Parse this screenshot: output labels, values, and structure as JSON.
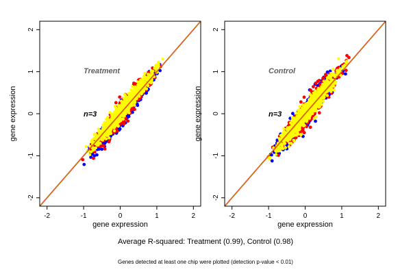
{
  "chart_data": [
    {
      "type": "scatter",
      "panel_label": "Treatment",
      "n_label": "n=3",
      "xlabel": "gene expression",
      "ylabel": "gene expression",
      "xlim": [
        -2.2,
        2.2
      ],
      "ylim": [
        -2.2,
        2.2
      ],
      "xticks": [
        -2,
        -1,
        0,
        1,
        2
      ],
      "yticks": [
        -2,
        -1,
        0,
        1,
        2
      ],
      "reference_line": {
        "slope": 1,
        "intercept": 0,
        "colors": [
          "#c00000",
          "#e8a000"
        ]
      },
      "series": [
        {
          "color": "#0000ff",
          "cloud": {
            "x_range": [
              -1.1,
              1.25
            ],
            "center_offset": -0.06,
            "spread": 0.2
          }
        },
        {
          "color": "#ff0000",
          "cloud": {
            "x_range": [
              -1.1,
              1.2
            ],
            "center_offset": 0.0,
            "spread": 0.22
          }
        },
        {
          "color": "#ffff00",
          "cloud": {
            "x_range": [
              -1.1,
              1.2
            ],
            "center_offset": 0.04,
            "spread": 0.18
          }
        }
      ]
    },
    {
      "type": "scatter",
      "panel_label": "Control",
      "n_label": "n=3",
      "xlabel": "gene expression",
      "ylabel": "gene expression",
      "xlim": [
        -2.2,
        2.2
      ],
      "ylim": [
        -2.2,
        2.2
      ],
      "xticks": [
        -2,
        -1,
        0,
        1,
        2
      ],
      "yticks": [
        -2,
        -1,
        0,
        1,
        2
      ],
      "reference_line": {
        "slope": 1,
        "intercept": 0,
        "colors": [
          "#c00000",
          "#e8a000"
        ]
      },
      "series": [
        {
          "color": "#0000ff",
          "cloud": {
            "x_range": [
              -1.1,
              1.3
            ],
            "center_offset": 0.0,
            "spread": 0.26
          }
        },
        {
          "color": "#ff0000",
          "cloud": {
            "x_range": [
              -1.1,
              1.25
            ],
            "center_offset": 0.0,
            "spread": 0.27
          }
        },
        {
          "color": "#ffff00",
          "cloud": {
            "x_range": [
              -1.1,
              1.25
            ],
            "center_offset": 0.0,
            "spread": 0.2
          }
        }
      ]
    }
  ],
  "footer": {
    "summary": "Average R-squared: Treatment (0.99), Control (0.98)",
    "note": "Genes detected at least one chip were plotted (detection p-value < 0.01)"
  }
}
